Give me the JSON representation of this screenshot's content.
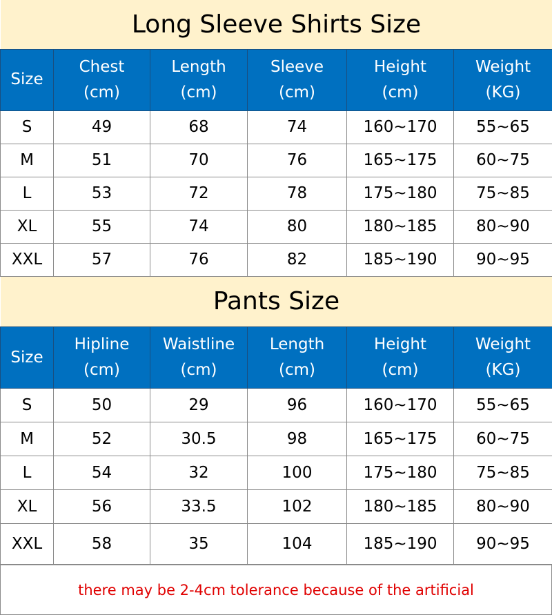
{
  "shirts": {
    "title": "Long Sleeve Shirts Size",
    "headers": [
      [
        "Size",
        ""
      ],
      [
        "Chest",
        "(cm)"
      ],
      [
        "Length",
        "(cm)"
      ],
      [
        "Sleeve",
        "(cm)"
      ],
      [
        "Height",
        "(cm)"
      ],
      [
        "Weight",
        "(KG)"
      ]
    ],
    "rows": [
      [
        "S",
        "49",
        "68",
        "74",
        "160~170",
        "55~65"
      ],
      [
        "M",
        "51",
        "70",
        "76",
        "165~175",
        "60~75"
      ],
      [
        "L",
        "53",
        "72",
        "78",
        "175~180",
        "75~85"
      ],
      [
        "XL",
        "55",
        "74",
        "80",
        "180~185",
        "80~90"
      ],
      [
        "XXL",
        "57",
        "76",
        "82",
        "185~190",
        "90~95"
      ]
    ]
  },
  "pants": {
    "title": "Pants Size",
    "headers": [
      [
        "Size",
        ""
      ],
      [
        "Hipline",
        "(cm)"
      ],
      [
        "Waistline",
        "(cm)"
      ],
      [
        "Length",
        "(cm)"
      ],
      [
        "Height",
        "(cm)"
      ],
      [
        "Weight",
        "(KG)"
      ]
    ],
    "rows": [
      [
        "S",
        "50",
        "29",
        "96",
        "160~170",
        "55~65"
      ],
      [
        "M",
        "52",
        "30.5",
        "98",
        "165~175",
        "60~75"
      ],
      [
        "L",
        "54",
        "32",
        "100",
        "175~180",
        "75~85"
      ],
      [
        "XL",
        "56",
        "33.5",
        "102",
        "180~185",
        "80~90"
      ],
      [
        "XXL",
        "58",
        "35",
        "104",
        "185~190",
        "90~95"
      ]
    ]
  },
  "footer": {
    "note": "there may be 2-4cm tolerance because of the artificial"
  },
  "colors": {
    "title_bg": "#FFF2CC",
    "header_bg": "#0070C0",
    "note": "#E00000"
  }
}
